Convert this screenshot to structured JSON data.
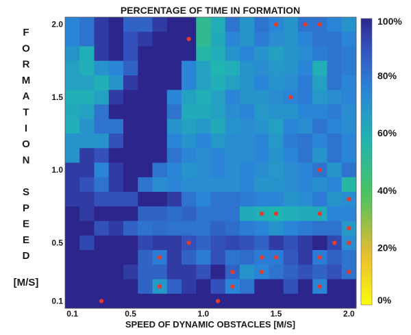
{
  "chart_data": {
    "type": "heatmap",
    "title": "PERCENTAGE OF TIME IN FORMATION",
    "xlabel": "SPEED OF DYNAMIC OBSTACLES [M/S]",
    "ylabel_letters": [
      "F",
      "O",
      "R",
      "M",
      "A",
      "T",
      "I",
      "O",
      "N",
      "",
      "S",
      "P",
      "E",
      "E",
      "D"
    ],
    "ylabel_unit": "[M/S]",
    "x_range": [
      0.1,
      2.0
    ],
    "y_range": [
      0.1,
      2.0
    ],
    "x_ticks": [
      {
        "value": 0.1,
        "label": "0.1"
      },
      {
        "value": 0.5,
        "label": "0.5"
      },
      {
        "value": 1.0,
        "label": "1.0"
      },
      {
        "value": 1.5,
        "label": "1.5"
      },
      {
        "value": 2.0,
        "label": "2.0"
      }
    ],
    "y_ticks": [
      {
        "value": 0.1,
        "label": "0.1"
      },
      {
        "value": 0.5,
        "label": "0.5"
      },
      {
        "value": 1.0,
        "label": "1.0"
      },
      {
        "value": 1.5,
        "label": "1.5"
      },
      {
        "value": 2.0,
        "label": "2.0"
      }
    ],
    "colorbar": {
      "min": 0,
      "max": 100,
      "ticks": [
        {
          "value": 100,
          "label": "100%"
        },
        {
          "value": 80,
          "label": "80%"
        },
        {
          "value": 60,
          "label": "60%"
        },
        {
          "value": 40,
          "label": "40%"
        },
        {
          "value": 20,
          "label": "20%"
        },
        {
          "value": 0,
          "label": "0%"
        }
      ],
      "colormap": "parula (dark blue = 100%, yellow = 0%)"
    },
    "grid_size": 20,
    "values_row_order": "top (2.0) to bottom (0.1)",
    "values": [
      [
        75,
        80,
        95,
        100,
        85,
        85,
        95,
        100,
        100,
        50,
        60,
        80,
        70,
        80,
        75,
        70,
        80,
        80,
        75,
        70
      ],
      [
        75,
        80,
        95,
        100,
        90,
        95,
        100,
        100,
        100,
        50,
        62,
        75,
        70,
        78,
        72,
        70,
        75,
        80,
        80,
        75
      ],
      [
        70,
        60,
        95,
        100,
        90,
        100,
        100,
        100,
        100,
        55,
        60,
        70,
        75,
        70,
        65,
        70,
        72,
        78,
        80,
        78
      ],
      [
        65,
        60,
        70,
        75,
        85,
        100,
        100,
        100,
        75,
        65,
        58,
        60,
        70,
        72,
        68,
        70,
        75,
        60,
        80,
        78
      ],
      [
        65,
        65,
        60,
        70,
        95,
        100,
        100,
        100,
        75,
        65,
        60,
        65,
        70,
        75,
        70,
        72,
        78,
        65,
        80,
        75
      ],
      [
        60,
        60,
        65,
        95,
        100,
        100,
        100,
        75,
        65,
        60,
        65,
        75,
        70,
        70,
        72,
        75,
        78,
        68,
        72,
        75
      ],
      [
        62,
        65,
        80,
        100,
        100,
        100,
        100,
        80,
        62,
        62,
        65,
        72,
        75,
        68,
        70,
        70,
        75,
        75,
        78,
        72
      ],
      [
        60,
        70,
        80,
        80,
        100,
        100,
        100,
        70,
        65,
        68,
        62,
        70,
        72,
        70,
        65,
        75,
        72,
        80,
        75,
        72
      ],
      [
        70,
        70,
        70,
        90,
        100,
        100,
        100,
        75,
        70,
        75,
        68,
        72,
        72,
        75,
        68,
        78,
        80,
        75,
        80,
        75
      ],
      [
        70,
        95,
        90,
        100,
        100,
        100,
        100,
        80,
        75,
        72,
        75,
        72,
        72,
        75,
        70,
        75,
        80,
        70,
        80,
        75
      ],
      [
        95,
        95,
        75,
        95,
        100,
        100,
        80,
        75,
        70,
        72,
        75,
        72,
        75,
        72,
        68,
        72,
        75,
        80,
        70,
        80
      ],
      [
        95,
        90,
        80,
        95,
        100,
        80,
        72,
        75,
        72,
        72,
        72,
        72,
        75,
        70,
        70,
        72,
        75,
        72,
        75,
        55
      ],
      [
        95,
        95,
        90,
        90,
        90,
        100,
        100,
        95,
        80,
        75,
        80,
        80,
        78,
        75,
        75,
        70,
        72,
        78,
        70,
        72
      ],
      [
        100,
        95,
        100,
        100,
        100,
        85,
        85,
        82,
        85,
        80,
        80,
        80,
        62,
        60,
        58,
        60,
        62,
        62,
        75,
        75
      ],
      [
        100,
        100,
        90,
        95,
        85,
        80,
        82,
        80,
        80,
        80,
        85,
        82,
        78,
        75,
        70,
        75,
        78,
        80,
        80,
        68
      ],
      [
        100,
        92,
        100,
        100,
        100,
        92,
        95,
        95,
        90,
        85,
        90,
        92,
        90,
        85,
        95,
        90,
        95,
        100,
        92,
        72
      ],
      [
        100,
        100,
        100,
        100,
        100,
        85,
        78,
        95,
        85,
        78,
        90,
        80,
        82,
        78,
        78,
        88,
        95,
        78,
        85,
        80
      ],
      [
        100,
        100,
        100,
        100,
        95,
        85,
        85,
        95,
        95,
        90,
        100,
        85,
        70,
        75,
        80,
        85,
        90,
        85,
        90,
        80
      ],
      [
        100,
        100,
        100,
        100,
        100,
        85,
        68,
        85,
        95,
        100,
        90,
        75,
        80,
        100,
        100,
        90,
        100,
        75,
        100,
        100
      ],
      [
        100,
        100,
        100,
        100,
        100,
        100,
        100,
        100,
        100,
        100,
        100,
        100,
        100,
        100,
        100,
        100,
        100,
        100,
        100,
        100
      ]
    ],
    "markers": [
      {
        "x": 1.5,
        "y": 2.0
      },
      {
        "x": 1.7,
        "y": 2.0
      },
      {
        "x": 1.8,
        "y": 2.0
      },
      {
        "x": 0.9,
        "y": 1.9
      },
      {
        "x": 1.6,
        "y": 1.5
      },
      {
        "x": 1.8,
        "y": 1.0
      },
      {
        "x": 2.0,
        "y": 0.8
      },
      {
        "x": 1.4,
        "y": 0.7
      },
      {
        "x": 1.5,
        "y": 0.7
      },
      {
        "x": 1.8,
        "y": 0.7
      },
      {
        "x": 2.0,
        "y": 0.6
      },
      {
        "x": 0.9,
        "y": 0.5
      },
      {
        "x": 1.9,
        "y": 0.5
      },
      {
        "x": 2.0,
        "y": 0.5
      },
      {
        "x": 0.7,
        "y": 0.4
      },
      {
        "x": 1.4,
        "y": 0.4
      },
      {
        "x": 1.5,
        "y": 0.4
      },
      {
        "x": 1.8,
        "y": 0.4
      },
      {
        "x": 1.2,
        "y": 0.3
      },
      {
        "x": 1.4,
        "y": 0.3
      },
      {
        "x": 2.0,
        "y": 0.3
      },
      {
        "x": 0.7,
        "y": 0.2
      },
      {
        "x": 1.2,
        "y": 0.2
      },
      {
        "x": 1.8,
        "y": 0.2
      },
      {
        "x": 0.3,
        "y": 0.1
      },
      {
        "x": 1.1,
        "y": 0.1
      }
    ],
    "marker_color": "#e53b2c"
  }
}
